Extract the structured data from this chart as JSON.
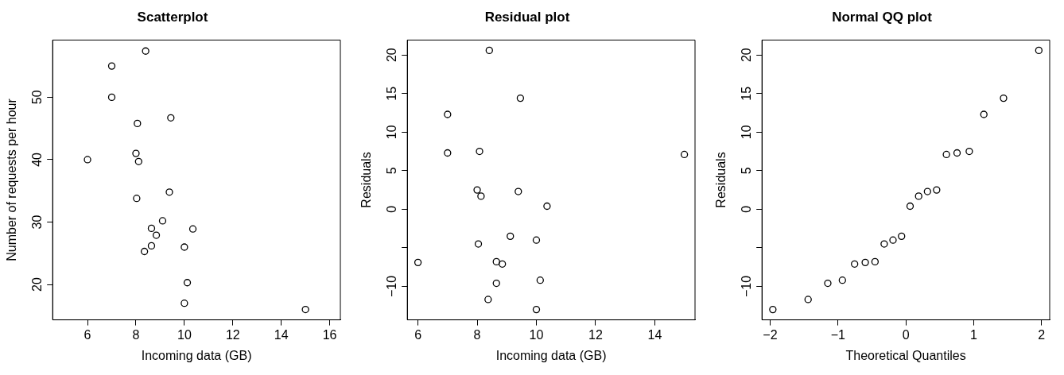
{
  "chart_data": [
    {
      "type": "scatter",
      "title": "Scatterplot",
      "xlabel": "Incoming data (GB)",
      "ylabel": "Number of requests per hour",
      "color": "#000000",
      "marker": "circle",
      "x": [
        8.4,
        7.0,
        7.0,
        9.44,
        8.06,
        6.0,
        8.0,
        8.11,
        9.38,
        8.03,
        9.1,
        8.64,
        10.35,
        8.84,
        8.64,
        10.0,
        8.35,
        10.12,
        10.0,
        15.0
      ],
      "values": [
        57.4,
        55.0,
        50.0,
        46.7,
        45.8,
        40.0,
        41.0,
        39.7,
        34.8,
        33.8,
        30.2,
        29.0,
        28.9,
        27.9,
        26.2,
        26.0,
        25.3,
        20.3,
        17.0,
        16.0
      ],
      "xlim": [
        4.56,
        16.44
      ],
      "ylim": [
        14.34,
        59.16
      ],
      "xticks": [
        6,
        8,
        10,
        12,
        14,
        16
      ],
      "yticks": [
        20,
        30,
        40,
        50
      ]
    },
    {
      "type": "scatter",
      "title": "Residual plot",
      "xlabel": "Incoming data (GB)",
      "ylabel": "Residuals",
      "color": "#000000",
      "marker": "circle",
      "x": [
        8.41,
        9.46,
        7.0,
        7.0,
        8.08,
        15.0,
        8.0,
        8.13,
        9.39,
        10.36,
        9.12,
        10.0,
        8.04,
        6.0,
        8.65,
        8.85,
        10.13,
        8.65,
        8.37,
        10.0
      ],
      "values": [
        20.6,
        14.4,
        12.3,
        7.3,
        7.5,
        7.1,
        2.5,
        1.7,
        2.3,
        0.4,
        -3.5,
        -4.0,
        -4.5,
        -6.9,
        -6.8,
        -7.1,
        -9.2,
        -9.6,
        -11.7,
        -13.0
      ],
      "xlim": [
        5.64,
        15.36
      ],
      "ylim": [
        -14.34,
        21.94
      ],
      "xticks": [
        6,
        8,
        10,
        12,
        14
      ],
      "yticks": [
        -10,
        {
          "value": -5,
          "label": null
        },
        0,
        5,
        10,
        15,
        20
      ]
    },
    {
      "type": "scatter",
      "title": "Normal QQ plot",
      "xlabel": "Theoretical Quantiles",
      "ylabel": "Residuals",
      "color": "#000000",
      "marker": "circle",
      "x": [
        -1.96,
        -1.44,
        -1.15,
        -0.935,
        -0.755,
        -0.598,
        -0.454,
        -0.319,
        -0.189,
        -0.063,
        0.063,
        0.189,
        0.319,
        0.454,
        0.598,
        0.755,
        0.935,
        1.15,
        1.44,
        1.96
      ],
      "values": [
        -13.0,
        -11.7,
        -9.6,
        -9.2,
        -7.1,
        -6.9,
        -6.8,
        -4.5,
        -4.0,
        -3.5,
        0.4,
        1.7,
        2.3,
        2.5,
        7.1,
        7.3,
        7.5,
        12.3,
        14.4,
        20.6
      ],
      "xlim": [
        -2.12,
        2.12
      ],
      "ylim": [
        -14.34,
        21.94
      ],
      "xticks": [
        -2,
        -1,
        0,
        1,
        2
      ],
      "yticks": [
        -10,
        {
          "value": -5,
          "label": null
        },
        0,
        5,
        10,
        15,
        20
      ]
    }
  ]
}
